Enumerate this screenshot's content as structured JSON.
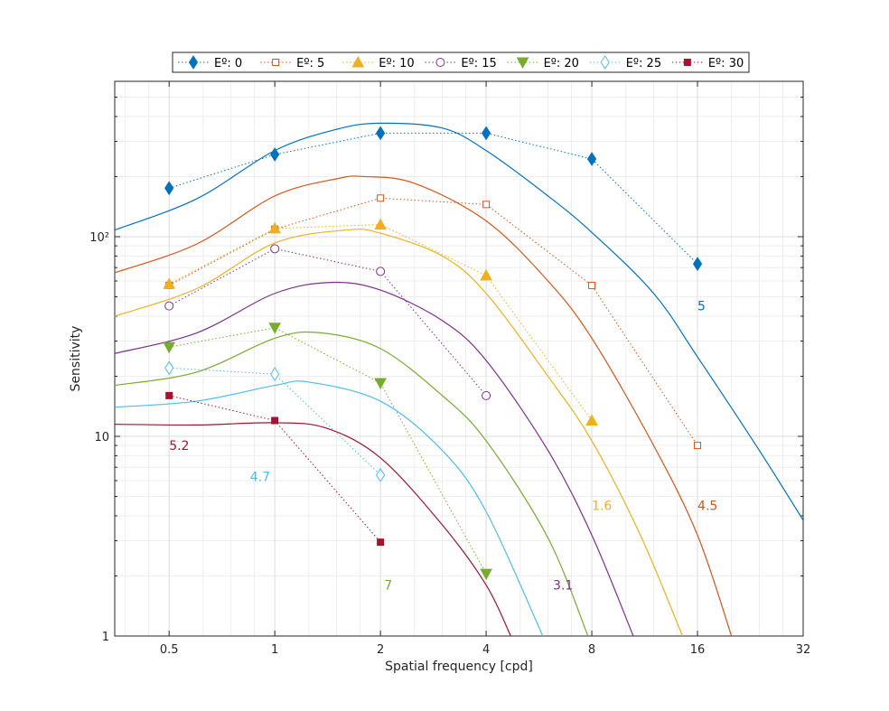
{
  "chart_data": {
    "type": "line",
    "title": "",
    "xlabel": "Spatial frequency [cpd]",
    "ylabel": "Sensitivity",
    "x_scale": "log2",
    "y_scale": "log10",
    "xlim": [
      0.35,
      32
    ],
    "ylim": [
      1,
      600
    ],
    "x_ticks": [
      0.5,
      1,
      2,
      4,
      8,
      16,
      32
    ],
    "x_tick_labels": [
      "0.5",
      "1",
      "2",
      "4",
      "8",
      "16",
      "32"
    ],
    "y_ticks": [
      1,
      10,
      100
    ],
    "y_tick_labels": [
      "1",
      "10",
      "10²"
    ],
    "grid": true,
    "legend_position": "top",
    "legend_columns": 7,
    "series": [
      {
        "name": "Eº: 0",
        "color": "#0072BD",
        "marker": "diamond-filled",
        "points": [
          [
            0.5,
            175
          ],
          [
            1,
            258
          ],
          [
            2,
            330
          ],
          [
            4,
            330
          ],
          [
            8,
            245
          ],
          [
            16,
            73
          ]
        ],
        "fit_curve": [
          [
            0.35,
            108
          ],
          [
            0.6,
            155
          ],
          [
            1,
            270
          ],
          [
            1.5,
            345
          ],
          [
            2,
            370
          ],
          [
            3,
            350
          ],
          [
            4,
            270
          ],
          [
            6,
            160
          ],
          [
            8,
            105
          ],
          [
            12,
            52
          ],
          [
            16,
            25
          ],
          [
            24,
            8.5
          ],
          [
            32,
            3.8
          ]
        ],
        "annotation": {
          "text": "5",
          "x": 16,
          "y": 45
        }
      },
      {
        "name": "Eº: 5",
        "color": "#D95319",
        "marker": "square-open",
        "points": [
          [
            0.5,
            57
          ],
          [
            1,
            109
          ],
          [
            2,
            156
          ],
          [
            4,
            145
          ],
          [
            8,
            57
          ],
          [
            16,
            9
          ]
        ],
        "fit_curve": [
          [
            0.35,
            66
          ],
          [
            0.6,
            92
          ],
          [
            1,
            160
          ],
          [
            1.5,
            195
          ],
          [
            1.8,
            200
          ],
          [
            2.5,
            185
          ],
          [
            4,
            120
          ],
          [
            6,
            60
          ],
          [
            8,
            31
          ],
          [
            12,
            9
          ],
          [
            16,
            3.2
          ],
          [
            20,
            1
          ]
        ],
        "annotation": {
          "text": "4.5",
          "x": 16,
          "y": 4.5
        }
      },
      {
        "name": "Eº: 10",
        "color": "#EDB120",
        "marker": "triangle-up-filled",
        "points": [
          [
            0.5,
            58
          ],
          [
            1,
            110
          ],
          [
            2,
            115
          ],
          [
            4,
            64
          ],
          [
            8,
            12
          ]
        ],
        "fit_curve": [
          [
            0.35,
            40
          ],
          [
            0.6,
            55
          ],
          [
            1,
            93
          ],
          [
            1.6,
            108
          ],
          [
            2,
            104
          ],
          [
            3,
            80
          ],
          [
            4,
            52
          ],
          [
            6,
            20
          ],
          [
            8,
            9.5
          ],
          [
            11,
            3.2
          ],
          [
            14.5,
            1
          ]
        ],
        "annotation": {
          "text": "1.6",
          "x": 8,
          "y": 4.5
        }
      },
      {
        "name": "Eº: 15",
        "color": "#7E2F8E",
        "marker": "circle-open",
        "points": [
          [
            0.5,
            45
          ],
          [
            1,
            87
          ],
          [
            2,
            67
          ],
          [
            4,
            16
          ]
        ],
        "fit_curve": [
          [
            0.35,
            26
          ],
          [
            0.6,
            33
          ],
          [
            1,
            52
          ],
          [
            1.45,
            59
          ],
          [
            2,
            54
          ],
          [
            3,
            38
          ],
          [
            4,
            24
          ],
          [
            6,
            8.5
          ],
          [
            8,
            3.2
          ],
          [
            10.5,
            1
          ]
        ],
        "annotation": {
          "text": "3.1",
          "x": 6.2,
          "y": 1.8
        }
      },
      {
        "name": "Eº: 20",
        "color": "#77AC30",
        "marker": "triangle-down-filled",
        "points": [
          [
            0.5,
            28
          ],
          [
            1,
            35
          ],
          [
            2,
            18.5
          ],
          [
            4,
            2.05
          ]
        ],
        "fit_curve": [
          [
            0.35,
            18
          ],
          [
            0.6,
            21
          ],
          [
            1,
            31
          ],
          [
            1.35,
            33
          ],
          [
            2,
            27.5
          ],
          [
            3,
            16
          ],
          [
            4,
            9.5
          ],
          [
            6,
            3.1
          ],
          [
            7.8,
            1
          ]
        ],
        "annotation": {
          "text": "7",
          "x": 2.05,
          "y": 1.8
        }
      },
      {
        "name": "Eº: 25",
        "color": "#4DBEEE",
        "marker": "diamond-open",
        "points": [
          [
            0.5,
            22
          ],
          [
            1,
            20.5
          ],
          [
            2,
            6.4
          ]
        ],
        "fit_curve": [
          [
            0.35,
            14
          ],
          [
            0.6,
            15
          ],
          [
            1,
            18
          ],
          [
            1.25,
            18.7
          ],
          [
            2,
            15
          ],
          [
            3,
            8.5
          ],
          [
            4,
            4.2
          ],
          [
            5.8,
            1
          ]
        ],
        "annotation": {
          "text": "4.7",
          "x": 0.85,
          "y": 6.3
        }
      },
      {
        "name": "Eº: 30",
        "color": "#A2142F",
        "marker": "square-filled",
        "points": [
          [
            0.5,
            16
          ],
          [
            1,
            12
          ],
          [
            2,
            2.95
          ]
        ],
        "fit_curve": [
          [
            0.35,
            11.5
          ],
          [
            0.6,
            11.4
          ],
          [
            1,
            11.7
          ],
          [
            1.4,
            11
          ],
          [
            2,
            7.8
          ],
          [
            3,
            3.6
          ],
          [
            4,
            1.8
          ],
          [
            4.7,
            1
          ]
        ],
        "annotation": {
          "text": "5.2",
          "x": 0.5,
          "y": 9
        }
      }
    ]
  }
}
